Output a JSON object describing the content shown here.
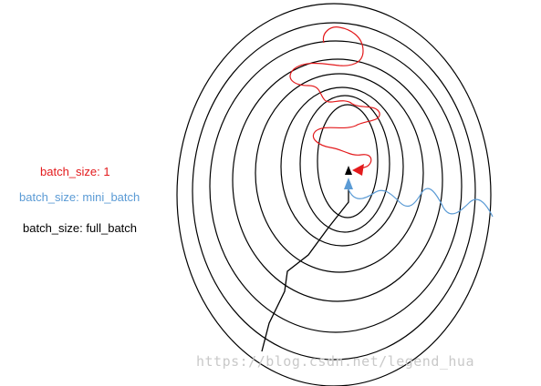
{
  "legend": {
    "sgd": {
      "label": "batch_size: 1",
      "color": "#e31a1c"
    },
    "mini": {
      "label": "batch_size: mini_batch",
      "color": "#5b9bd5"
    },
    "full": {
      "label": "batch_size: full_batch",
      "color": "#000000"
    }
  },
  "watermark": "https://blog.csdn.net/legend_hua",
  "colors": {
    "contour": "#000000",
    "background": "#ffffff"
  }
}
